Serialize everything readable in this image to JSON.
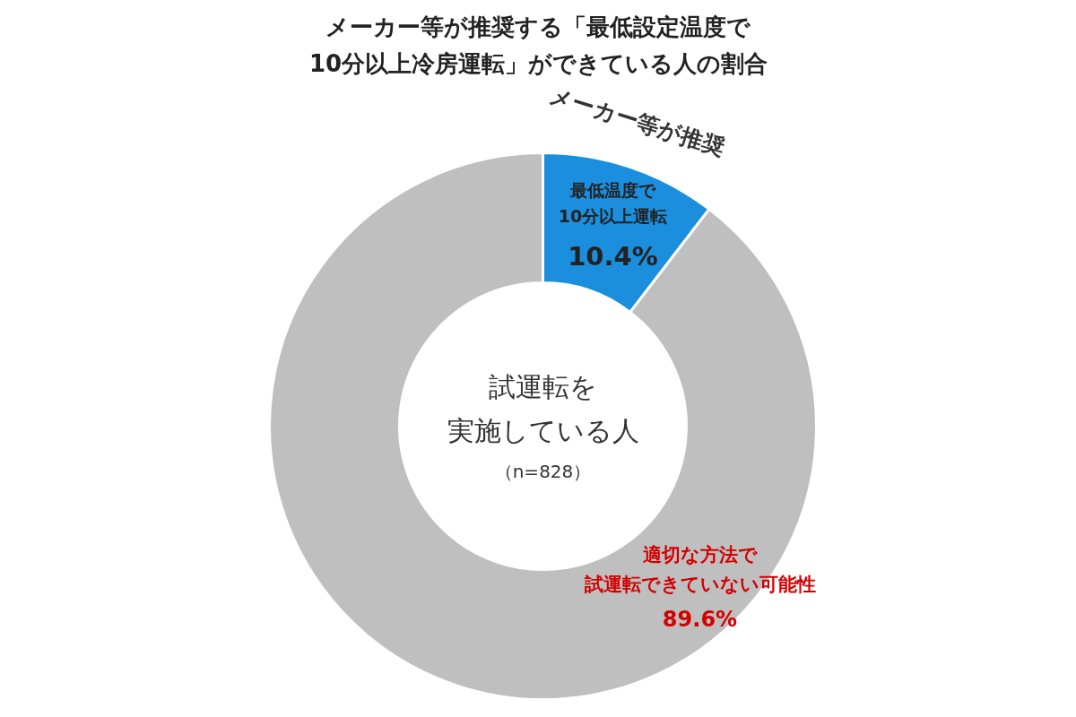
{
  "chart_data": {
    "type": "donut",
    "title": "メーカー等が推奨する「最低設定温度で10分以上冷房運転」ができている人の割合",
    "categories": [
      "最低温度で10分以上運転",
      "適切な方法で試運転できていない可能性"
    ],
    "values": [
      10.4,
      89.6
    ],
    "colors": [
      "#1b8fde",
      "#bfbfbf"
    ],
    "value_labels": [
      "10.4%",
      "89.6%"
    ],
    "annotations": [
      "メーカー等が推奨",
      "試運転を実施している人",
      "（n=828）"
    ]
  }
}
